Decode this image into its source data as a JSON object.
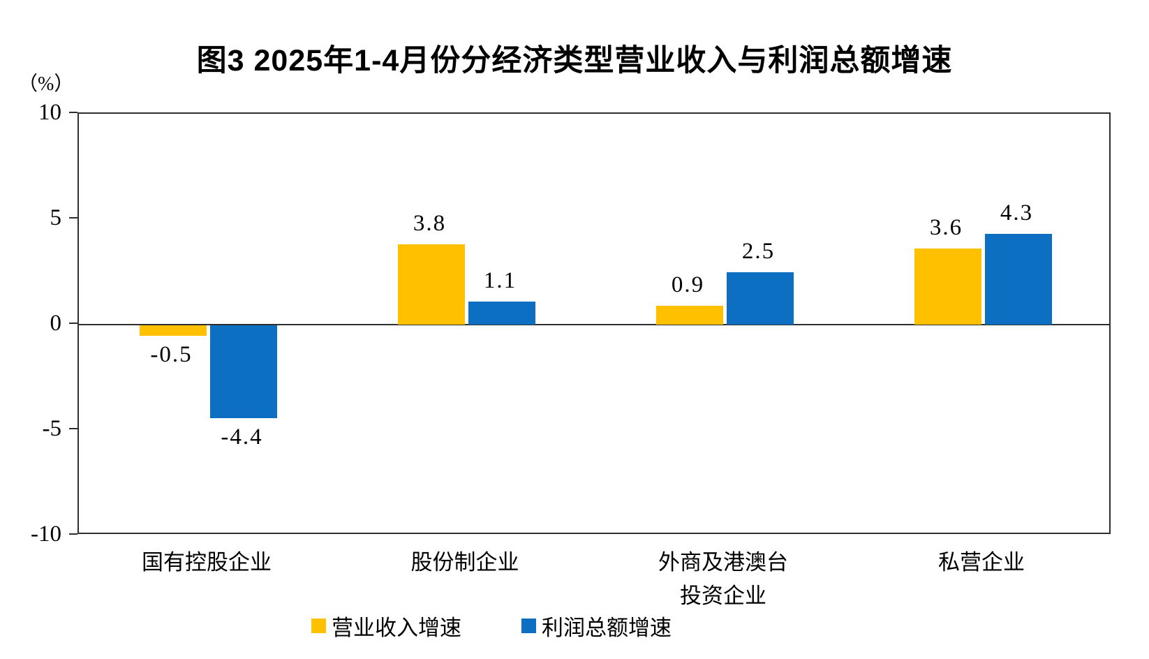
{
  "title": "图3  2025年1-4月份分经济类型营业收入与利润总额增速",
  "y_axis_unit": "（%）",
  "colors": {
    "axis": "#2e2e2e",
    "text": "#000000",
    "revenue_series": "#FFC000",
    "profit_series": "#0D6FC2"
  },
  "chart_data": {
    "type": "bar",
    "title": "图3  2025年1-4月份分经济类型营业收入与利润总额增速",
    "xlabel": "",
    "ylabel": "（%）",
    "ylim": [
      -10,
      10
    ],
    "yticks": [
      10,
      5,
      0,
      -5,
      -10
    ],
    "grid": false,
    "legend_position": "bottom",
    "categories": [
      {
        "lines": [
          "国有控股企业"
        ]
      },
      {
        "lines": [
          "股份制企业"
        ]
      },
      {
        "lines": [
          "外商及港澳台",
          "投资企业"
        ]
      },
      {
        "lines": [
          "私营企业"
        ]
      }
    ],
    "series": [
      {
        "name": "营业收入增速",
        "color": "#FFC000",
        "values": [
          -0.5,
          3.8,
          0.9,
          3.6
        ],
        "labels": [
          "-0.5",
          "3.8",
          "0.9",
          "3.6"
        ]
      },
      {
        "name": "利润总额增速",
        "color": "#0D6FC2",
        "values": [
          -4.4,
          1.1,
          2.5,
          4.3
        ],
        "labels": [
          "-4.4",
          "1.1",
          "2.5",
          "4.3"
        ]
      }
    ]
  }
}
